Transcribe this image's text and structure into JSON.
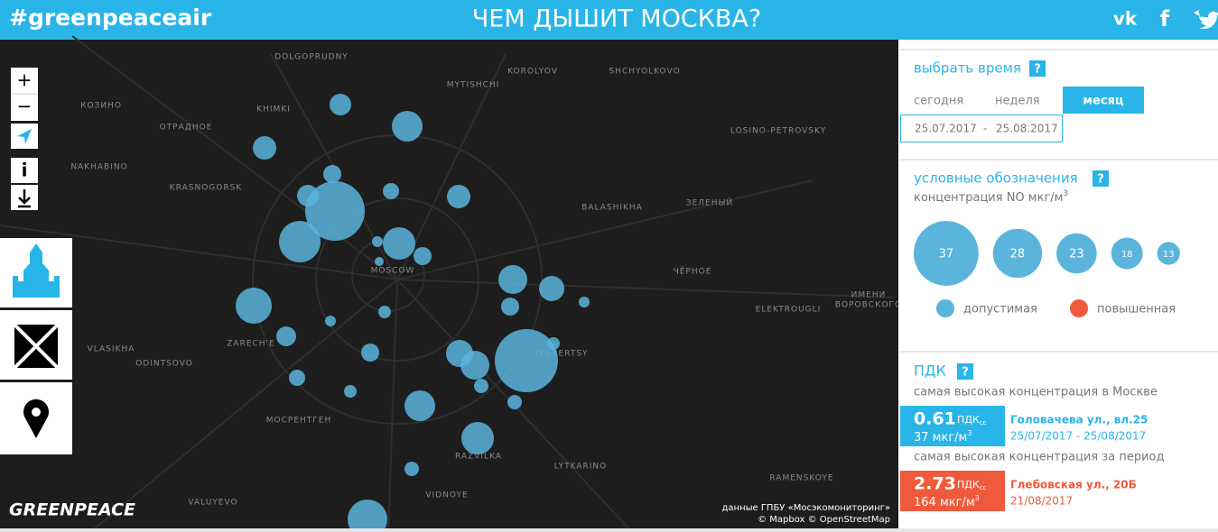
{
  "header": {
    "hashtag": "#greenpeaceair",
    "title": "ЧЕМ ДЫШИТ МОСКВА?",
    "social": [
      "vk",
      "f"
    ]
  },
  "map": {
    "zoom_controls": [
      "+",
      "−"
    ],
    "info": "i",
    "labels": [
      "DOLGOPRUDNY",
      "KHIMKI",
      "MYTISHCHI",
      "KOROLYOV",
      "SHCHYOLKOVO",
      "КОЗИНО",
      "ОТРАДНОЕ",
      "NAKHABINO",
      "KRASNOGORSK",
      "LOSINO-PETROVSKY",
      "BALASHIKHA",
      "ЗЕЛЕНЫЙ",
      "MOSCOW",
      "ЧЁРНОЕ",
      "ИМЕНИ",
      "ВОРОВСКОГО",
      "ELEKTROUGLI",
      "ZARECH'E",
      "VLASIKHA",
      "ODINTSOVO",
      "LYUBERTSY",
      "МОСРЕНТГЕН",
      "RAZVILKA",
      "LYTKARINO",
      "VALUYEVO",
      "VIDNOYE",
      "RAMENSKOYE"
    ],
    "logo": "GREENPEACE",
    "attribution": [
      "данные ГПБУ «Мосэкомониторинг»",
      "© Mapbox © OpenStreetMap"
    ]
  },
  "time": {
    "title": "выбрать время",
    "help": "?",
    "tabs": [
      "сегодня",
      "неделя",
      "месяц"
    ],
    "active_tab": 2,
    "date_from": "25.07.2017",
    "separator": "-",
    "date_to": "25.08.2017"
  },
  "legend": {
    "title": "условные обозначения",
    "help": "?",
    "subtitle": "концентрация NO мкг/м",
    "subtitle_sup": "3",
    "sizes": [
      37,
      28,
      23,
      18,
      13
    ],
    "categories": [
      {
        "name": "допустимая",
        "color": "#5ab4dc"
      },
      {
        "name": "повышенная",
        "color": "#f05a3c"
      }
    ]
  },
  "pdk": {
    "title": "ПДК",
    "help": "?",
    "moscow": {
      "caption": "самая высокая концентрация в Москве",
      "index": 0.61,
      "unit": "ПДК",
      "unit_sub": "сс",
      "concentration": "37 мкг/м",
      "concentration_sup": "3",
      "address": "Головачева ул., вл.25",
      "period": "25/07/2017 - 25/08/2017",
      "color": "#29b5e8"
    },
    "period_max": {
      "caption": "самая высокая концентрация за период",
      "index": 2.73,
      "unit": "ПДК",
      "unit_sub": "сс",
      "concentration": "164 мкг/м",
      "concentration_sup": "3",
      "address": "Глебовская ул., 20Б",
      "period": "21/08/2017",
      "color": "#f05a3c"
    }
  }
}
